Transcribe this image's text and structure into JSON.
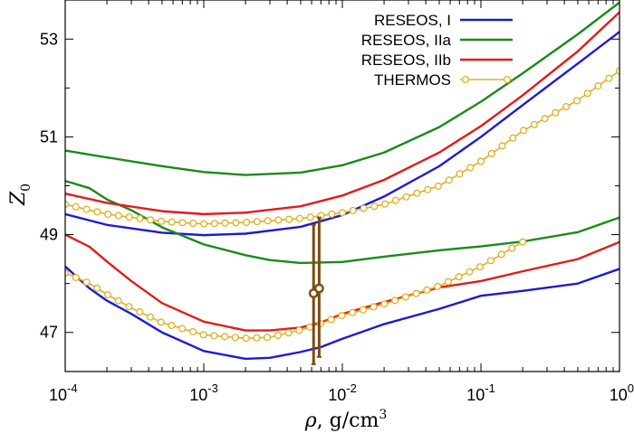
{
  "chart_data": {
    "type": "line",
    "x_scale": "log",
    "xlim": [
      0.0001,
      1
    ],
    "ylim": [
      46.2,
      53.8
    ],
    "grid": false,
    "legend_position": "top-right",
    "xlabel": {
      "symbol": "ρ",
      "text": ", g/cm",
      "sup": "3"
    },
    "ylabel": {
      "symbol": "Z",
      "sub": "0"
    },
    "x_ticks": [
      {
        "value": 0.0001,
        "base": "10",
        "exp": "-4"
      },
      {
        "value": 0.001,
        "base": "10",
        "exp": "-3"
      },
      {
        "value": 0.01,
        "base": "10",
        "exp": "-2"
      },
      {
        "value": 0.1,
        "base": "10",
        "exp": "-1"
      },
      {
        "value": 1,
        "base": "10",
        "exp": "0"
      }
    ],
    "y_ticks": [
      {
        "value": 47,
        "label": "47"
      },
      {
        "value": 49,
        "label": "49"
      },
      {
        "value": 51,
        "label": "51"
      },
      {
        "value": 53,
        "label": "53"
      }
    ],
    "series": [
      {
        "name": "RESEOS, I",
        "color": "#1a1adb",
        "marker": "none",
        "branches": [
          [
            [
              0.0001,
              49.42
            ],
            [
              0.0002,
              49.2
            ],
            [
              0.0005,
              49.04
            ],
            [
              0.001,
              48.99
            ],
            [
              0.002,
              49.02
            ],
            [
              0.005,
              49.16
            ],
            [
              0.01,
              49.4
            ],
            [
              0.02,
              49.78
            ],
            [
              0.05,
              50.4
            ],
            [
              0.1,
              51.0
            ],
            [
              0.2,
              51.65
            ],
            [
              0.5,
              52.5
            ],
            [
              1,
              53.15
            ]
          ],
          [
            [
              0.0001,
              48.35
            ],
            [
              0.00015,
              47.9
            ],
            [
              0.0002,
              47.65
            ],
            [
              0.0003,
              47.38
            ],
            [
              0.0005,
              47.0
            ],
            [
              0.001,
              46.62
            ],
            [
              0.002,
              46.46
            ],
            [
              0.003,
              46.48
            ],
            [
              0.005,
              46.6
            ],
            [
              0.007,
              46.7
            ],
            [
              0.01,
              46.87
            ],
            [
              0.02,
              47.17
            ],
            [
              0.05,
              47.48
            ],
            [
              0.1,
              47.75
            ],
            [
              0.2,
              47.85
            ],
            [
              0.5,
              48.0
            ],
            [
              1,
              48.3
            ]
          ]
        ]
      },
      {
        "name": "RESEOS, IIa",
        "color": "#1a8a1a",
        "marker": "none",
        "branches": [
          [
            [
              0.0001,
              50.72
            ],
            [
              0.0002,
              50.58
            ],
            [
              0.0005,
              50.4
            ],
            [
              0.001,
              50.28
            ],
            [
              0.002,
              50.22
            ],
            [
              0.005,
              50.27
            ],
            [
              0.01,
              50.42
            ],
            [
              0.02,
              50.68
            ],
            [
              0.05,
              51.2
            ],
            [
              0.1,
              51.72
            ],
            [
              0.2,
              52.3
            ],
            [
              0.5,
              53.1
            ],
            [
              1,
              53.75
            ]
          ],
          [
            [
              0.0001,
              50.1
            ],
            [
              0.00015,
              49.95
            ],
            [
              0.0002,
              49.72
            ],
            [
              0.0003,
              49.5
            ],
            [
              0.0005,
              49.15
            ],
            [
              0.001,
              48.8
            ],
            [
              0.002,
              48.58
            ],
            [
              0.003,
              48.48
            ],
            [
              0.005,
              48.42
            ],
            [
              0.01,
              48.44
            ],
            [
              0.02,
              48.55
            ],
            [
              0.05,
              48.68
            ],
            [
              0.1,
              48.76
            ],
            [
              0.2,
              48.86
            ],
            [
              0.5,
              49.05
            ],
            [
              1,
              49.35
            ]
          ]
        ]
      },
      {
        "name": "RESEOS, IIb",
        "color": "#e41a1a",
        "marker": "none",
        "branches": [
          [
            [
              0.0001,
              49.84
            ],
            [
              0.0002,
              49.65
            ],
            [
              0.0005,
              49.48
            ],
            [
              0.001,
              49.42
            ],
            [
              0.002,
              49.45
            ],
            [
              0.005,
              49.58
            ],
            [
              0.01,
              49.8
            ],
            [
              0.02,
              50.12
            ],
            [
              0.05,
              50.68
            ],
            [
              0.1,
              51.22
            ],
            [
              0.2,
              51.85
            ],
            [
              0.5,
              52.75
            ],
            [
              1,
              53.55
            ]
          ],
          [
            [
              0.0001,
              49.0
            ],
            [
              0.00015,
              48.75
            ],
            [
              0.0002,
              48.45
            ],
            [
              0.0003,
              48.05
            ],
            [
              0.0005,
              47.6
            ],
            [
              0.001,
              47.22
            ],
            [
              0.002,
              47.04
            ],
            [
              0.003,
              47.04
            ],
            [
              0.005,
              47.1
            ],
            [
              0.007,
              47.2
            ],
            [
              0.01,
              47.38
            ],
            [
              0.02,
              47.62
            ],
            [
              0.05,
              47.92
            ],
            [
              0.1,
              48.05
            ],
            [
              0.2,
              48.25
            ],
            [
              0.5,
              48.5
            ],
            [
              1,
              48.85
            ]
          ]
        ]
      },
      {
        "name": "THERMOS",
        "color": "#e0b020",
        "marker": "circle",
        "branches": [
          [
            [
              0.0001,
              49.62
            ],
            [
              0.0002,
              49.42
            ],
            [
              0.0005,
              49.27
            ],
            [
              0.001,
              49.22
            ],
            [
              0.002,
              49.25
            ],
            [
              0.005,
              49.33
            ],
            [
              0.01,
              49.45
            ],
            [
              0.02,
              49.62
            ],
            [
              0.05,
              50.0
            ],
            [
              0.1,
              50.5
            ],
            [
              0.2,
              51.12
            ],
            [
              0.5,
              51.75
            ],
            [
              1,
              52.35
            ]
          ],
          [
            [
              0.0001,
              48.22
            ],
            [
              0.00015,
              48.0
            ],
            [
              0.0002,
              47.78
            ],
            [
              0.0003,
              47.5
            ],
            [
              0.0005,
              47.2
            ],
            [
              0.001,
              46.95
            ],
            [
              0.002,
              46.88
            ],
            [
              0.003,
              46.9
            ],
            [
              0.005,
              47.05
            ],
            [
              0.007,
              47.18
            ],
            [
              0.01,
              47.35
            ],
            [
              0.02,
              47.58
            ],
            [
              0.05,
              47.95
            ],
            [
              0.1,
              48.35
            ],
            [
              0.2,
              48.85
            ]
          ]
        ]
      }
    ],
    "error_bars": {
      "color": "#7f4a10",
      "points": [
        {
          "x": 0.0062,
          "y": 47.8,
          "ymin": 46.35,
          "ymax": 49.2
        },
        {
          "x": 0.0068,
          "y": 47.9,
          "ymin": 46.5,
          "ymax": 49.35
        }
      ]
    }
  }
}
